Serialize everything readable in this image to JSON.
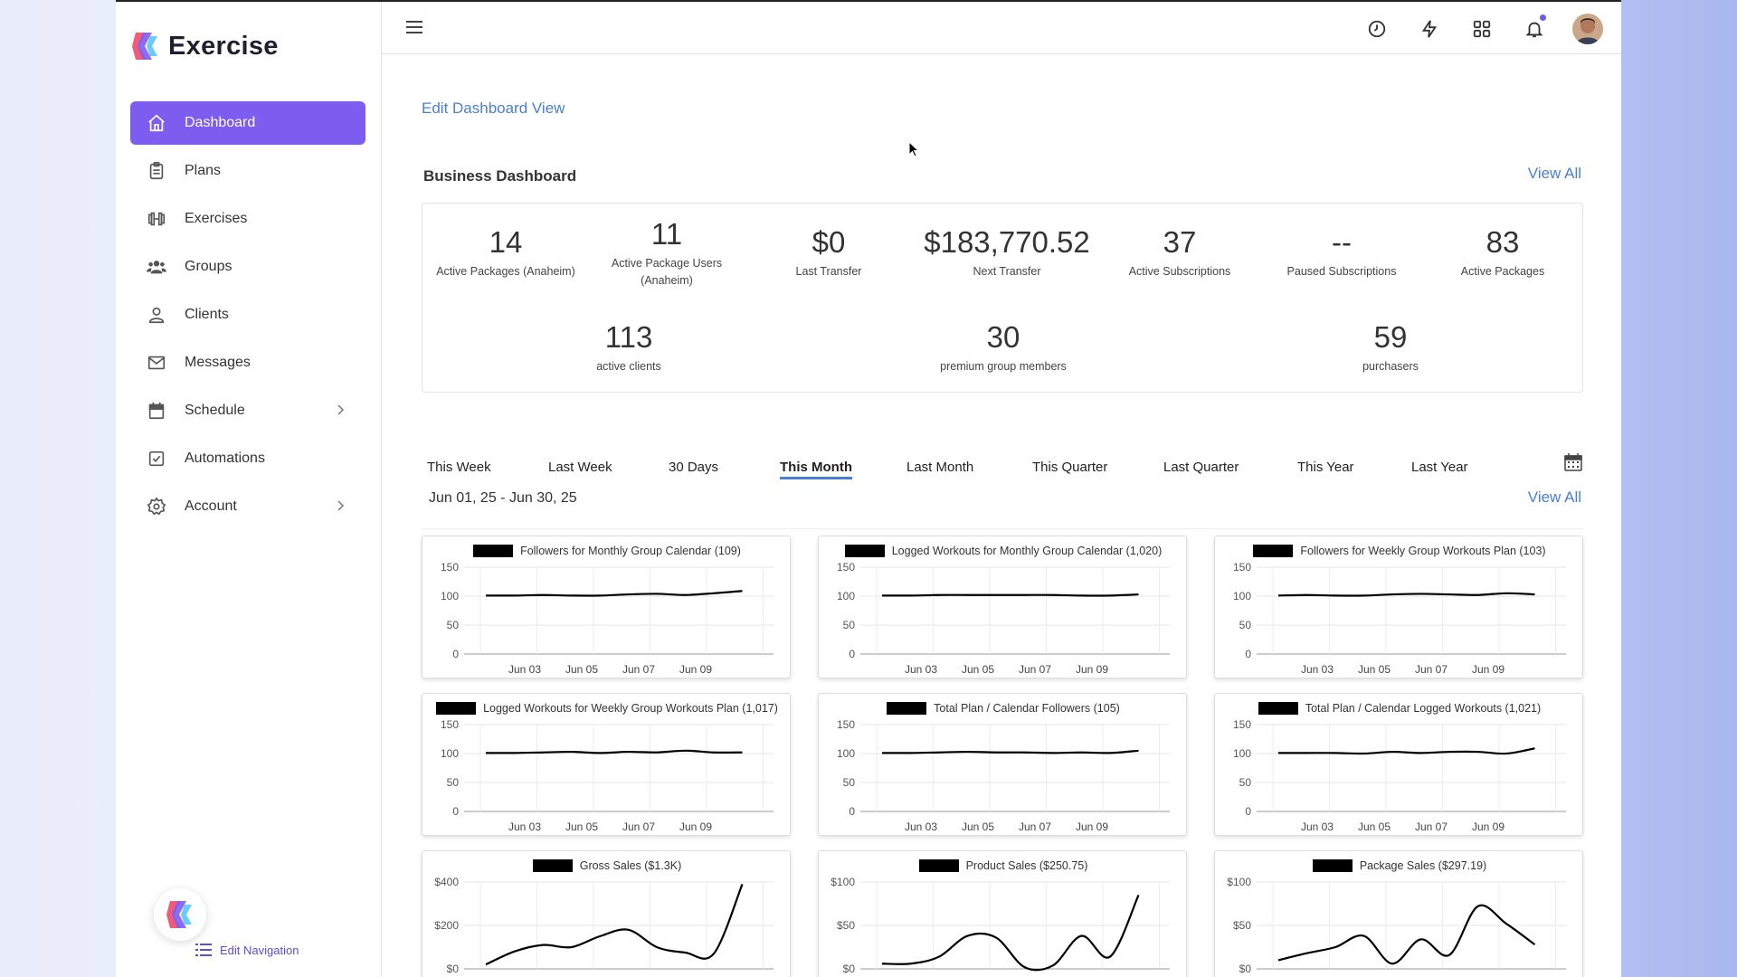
{
  "brand": {
    "name": "Exercise"
  },
  "sidebar": {
    "items": [
      {
        "label": "Dashboard",
        "icon": "home-icon",
        "active": true
      },
      {
        "label": "Plans",
        "icon": "clipboard-icon"
      },
      {
        "label": "Exercises",
        "icon": "dumbbell-icon"
      },
      {
        "label": "Groups",
        "icon": "users-icon"
      },
      {
        "label": "Clients",
        "icon": "user-icon"
      },
      {
        "label": "Messages",
        "icon": "mail-icon"
      },
      {
        "label": "Schedule",
        "icon": "calendar-icon",
        "chevron": true
      },
      {
        "label": "Automations",
        "icon": "checkbox-icon"
      },
      {
        "label": "Account",
        "icon": "gear-icon",
        "chevron": true
      }
    ],
    "edit_navigation": "Edit Navigation"
  },
  "topbar": {
    "icons": [
      "clock-icon",
      "bolt-icon",
      "grid-icon",
      "bell-icon"
    ],
    "accent": "#6f5ae8"
  },
  "main": {
    "edit_view": "Edit Dashboard View",
    "business_title": "Business Dashboard",
    "view_all": "View All",
    "stats_row1": [
      {
        "value": "14",
        "label": "Active Packages (Anaheim)"
      },
      {
        "value": "11",
        "label": "Active Package Users (Anaheim)"
      },
      {
        "value": "$0",
        "label": "Last Transfer"
      },
      {
        "value": "$183,770.52",
        "label": "Next Transfer"
      },
      {
        "value": "37",
        "label": "Active Subscriptions"
      },
      {
        "value": "--",
        "label": "Paused Subscriptions"
      },
      {
        "value": "83",
        "label": "Active Packages"
      }
    ],
    "stats_row2": [
      {
        "value": "113",
        "label": "active clients"
      },
      {
        "value": "30",
        "label": "premium group members"
      },
      {
        "value": "59",
        "label": "purchasers"
      }
    ],
    "ranges": [
      "This Week",
      "Last Week",
      "30 Days",
      "This Month",
      "Last Month",
      "This Quarter",
      "Last Quarter",
      "This Year",
      "Last Year"
    ],
    "active_range": "This Month",
    "date_range": "Jun 01, 25 - Jun 30, 25",
    "view_all_2": "View All"
  },
  "chart_data": [
    {
      "type": "line",
      "title": "Followers for Monthly Group Calendar (109)",
      "yticks": [
        "150",
        "100",
        "50",
        "0"
      ],
      "ylim": [
        0,
        150
      ],
      "xticks": [
        "Jun 03",
        "Jun 05",
        "Jun 07",
        "Jun 09"
      ],
      "x": [
        "Jun 01",
        "Jun 02",
        "Jun 03",
        "Jun 04",
        "Jun 05",
        "Jun 06",
        "Jun 07",
        "Jun 08",
        "Jun 09",
        "Jun 10"
      ],
      "values": [
        101,
        101,
        102,
        101,
        101,
        103,
        104,
        102,
        105,
        109
      ]
    },
    {
      "type": "line",
      "title": "Logged Workouts for Monthly Group Calendar (1,020)",
      "yticks": [
        "150",
        "100",
        "50",
        "0"
      ],
      "ylim": [
        0,
        150
      ],
      "xticks": [
        "Jun 03",
        "Jun 05",
        "Jun 07",
        "Jun 09"
      ],
      "x": [
        "Jun 01",
        "Jun 02",
        "Jun 03",
        "Jun 04",
        "Jun 05",
        "Jun 06",
        "Jun 07",
        "Jun 08",
        "Jun 09",
        "Jun 10"
      ],
      "values": [
        101,
        101,
        102,
        102,
        102,
        102,
        102,
        101,
        101,
        103
      ]
    },
    {
      "type": "line",
      "title": "Followers for Weekly Group Workouts Plan (103)",
      "yticks": [
        "150",
        "100",
        "50",
        "0"
      ],
      "ylim": [
        0,
        150
      ],
      "xticks": [
        "Jun 03",
        "Jun 05",
        "Jun 07",
        "Jun 09"
      ],
      "x": [
        "Jun 01",
        "Jun 02",
        "Jun 03",
        "Jun 04",
        "Jun 05",
        "Jun 06",
        "Jun 07",
        "Jun 08",
        "Jun 09",
        "Jun 10"
      ],
      "values": [
        101,
        102,
        101,
        101,
        103,
        104,
        103,
        102,
        105,
        103
      ]
    },
    {
      "type": "line",
      "title": "Logged Workouts for Weekly Group Workouts Plan (1,017)",
      "yticks": [
        "150",
        "100",
        "50",
        "0"
      ],
      "ylim": [
        0,
        150
      ],
      "xticks": [
        "Jun 03",
        "Jun 05",
        "Jun 07",
        "Jun 09"
      ],
      "x": [
        "Jun 01",
        "Jun 02",
        "Jun 03",
        "Jun 04",
        "Jun 05",
        "Jun 06",
        "Jun 07",
        "Jun 08",
        "Jun 09",
        "Jun 10"
      ],
      "values": [
        101,
        101,
        102,
        103,
        101,
        103,
        102,
        105,
        102,
        102
      ]
    },
    {
      "type": "line",
      "title": "Total Plan / Calendar Followers (105)",
      "yticks": [
        "150",
        "100",
        "50",
        "0"
      ],
      "ylim": [
        0,
        150
      ],
      "xticks": [
        "Jun 03",
        "Jun 05",
        "Jun 07",
        "Jun 09"
      ],
      "x": [
        "Jun 01",
        "Jun 02",
        "Jun 03",
        "Jun 04",
        "Jun 05",
        "Jun 06",
        "Jun 07",
        "Jun 08",
        "Jun 09",
        "Jun 10"
      ],
      "values": [
        101,
        101,
        102,
        103,
        102,
        102,
        101,
        102,
        101,
        105
      ]
    },
    {
      "type": "line",
      "title": "Total Plan / Calendar Logged Workouts (1,021)",
      "yticks": [
        "150",
        "100",
        "50",
        "0"
      ],
      "ylim": [
        0,
        150
      ],
      "xticks": [
        "Jun 03",
        "Jun 05",
        "Jun 07",
        "Jun 09"
      ],
      "x": [
        "Jun 01",
        "Jun 02",
        "Jun 03",
        "Jun 04",
        "Jun 05",
        "Jun 06",
        "Jun 07",
        "Jun 08",
        "Jun 09",
        "Jun 10"
      ],
      "values": [
        101,
        101,
        101,
        100,
        103,
        101,
        103,
        103,
        100,
        109
      ]
    },
    {
      "type": "line",
      "title": "Gross Sales ($1.3K)",
      "yticks": [
        "$400",
        "$200",
        "$0"
      ],
      "ylim": [
        0,
        400
      ],
      "xticks": [],
      "x": [
        "Jun 01",
        "Jun 02",
        "Jun 03",
        "Jun 04",
        "Jun 05",
        "Jun 06",
        "Jun 07",
        "Jun 08",
        "Jun 09",
        "Jun 10"
      ],
      "values": [
        20,
        80,
        110,
        100,
        150,
        180,
        100,
        75,
        70,
        390
      ]
    },
    {
      "type": "line",
      "title": "Product Sales ($250.75)",
      "yticks": [
        "$100",
        "$50",
        "$0"
      ],
      "ylim": [
        0,
        100
      ],
      "xticks": [],
      "x": [
        "Jun 01",
        "Jun 02",
        "Jun 03",
        "Jun 04",
        "Jun 05",
        "Jun 06",
        "Jun 07",
        "Jun 08",
        "Jun 09",
        "Jun 10"
      ],
      "values": [
        6,
        6,
        14,
        38,
        36,
        2,
        4,
        38,
        14,
        85
      ]
    },
    {
      "type": "line",
      "title": "Package Sales ($297.19)",
      "yticks": [
        "$100",
        "$50",
        "$0"
      ],
      "ylim": [
        0,
        100
      ],
      "xticks": [],
      "x": [
        "Jun 01",
        "Jun 02",
        "Jun 03",
        "Jun 04",
        "Jun 05",
        "Jun 06",
        "Jun 07",
        "Jun 08",
        "Jun 09",
        "Jun 10"
      ],
      "values": [
        10,
        18,
        25,
        38,
        6,
        34,
        16,
        72,
        52,
        28
      ]
    }
  ]
}
